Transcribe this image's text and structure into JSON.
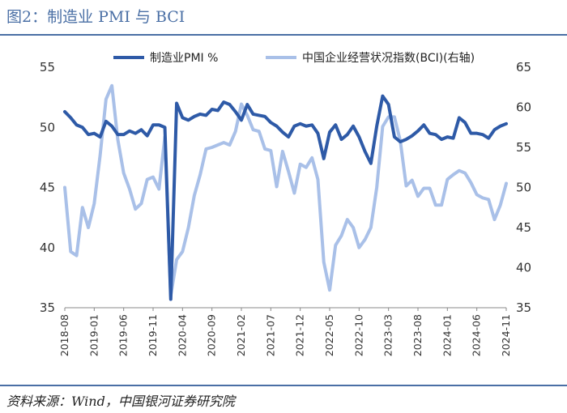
{
  "title": "图2：制造业 PMI 与 BCI",
  "source": "资料来源：Wind，中国银河证券研究院",
  "colors": {
    "pmi": "#2e5aa7",
    "bci": "#a9c0e8",
    "accent": "#4a6fa5"
  },
  "chart_data": {
    "type": "line",
    "x_tick_labels": [
      "2018-08",
      "2019-01",
      "2019-06",
      "2019-11",
      "2020-04",
      "2020-09",
      "2021-02",
      "2021-07",
      "2021-12",
      "2022-05",
      "2022-10",
      "2023-03",
      "2023-08",
      "2024-01",
      "2024-06",
      "2024-11"
    ],
    "x": [
      "2018-08",
      "2018-09",
      "2018-10",
      "2018-11",
      "2018-12",
      "2019-01",
      "2019-02",
      "2019-03",
      "2019-04",
      "2019-05",
      "2019-06",
      "2019-07",
      "2019-08",
      "2019-09",
      "2019-10",
      "2019-11",
      "2019-12",
      "2020-01",
      "2020-02",
      "2020-03",
      "2020-04",
      "2020-05",
      "2020-06",
      "2020-07",
      "2020-08",
      "2020-09",
      "2020-10",
      "2020-11",
      "2020-12",
      "2021-01",
      "2021-02",
      "2021-03",
      "2021-04",
      "2021-05",
      "2021-06",
      "2021-07",
      "2021-08",
      "2021-09",
      "2021-10",
      "2021-11",
      "2021-12",
      "2022-01",
      "2022-02",
      "2022-03",
      "2022-04",
      "2022-05",
      "2022-06",
      "2022-07",
      "2022-08",
      "2022-09",
      "2022-10",
      "2022-11",
      "2022-12",
      "2023-01",
      "2023-02",
      "2023-03",
      "2023-04",
      "2023-05",
      "2023-06",
      "2023-07",
      "2023-08",
      "2023-09",
      "2023-10",
      "2023-11",
      "2023-12",
      "2024-01",
      "2024-02",
      "2024-03",
      "2024-04",
      "2024-05",
      "2024-06",
      "2024-07",
      "2024-08",
      "2024-09",
      "2024-10",
      "2024-11"
    ],
    "y_left": {
      "label": "",
      "range": [
        35,
        55
      ],
      "ticks": [
        35,
        40,
        45,
        50,
        55
      ]
    },
    "y_right": {
      "label": "",
      "range": [
        35,
        65
      ],
      "ticks": [
        35,
        40,
        45,
        50,
        55,
        60,
        65
      ]
    },
    "legend_position": "top",
    "series": [
      {
        "name": "制造业PMI %",
        "axis": "left",
        "values": [
          51.3,
          50.8,
          50.2,
          50.0,
          49.4,
          49.5,
          49.2,
          50.5,
          50.1,
          49.4,
          49.4,
          49.7,
          49.5,
          49.8,
          49.3,
          50.2,
          50.2,
          50.0,
          35.7,
          52.0,
          50.8,
          50.6,
          50.9,
          51.1,
          51.0,
          51.5,
          51.4,
          52.1,
          51.9,
          51.3,
          50.6,
          51.9,
          51.1,
          51.0,
          50.9,
          50.4,
          50.1,
          49.6,
          49.2,
          50.1,
          50.3,
          50.1,
          50.2,
          49.5,
          47.4,
          49.6,
          50.2,
          49.0,
          49.4,
          50.1,
          49.2,
          48.0,
          47.0,
          50.1,
          52.6,
          51.9,
          49.2,
          48.8,
          49.0,
          49.3,
          49.7,
          50.2,
          49.5,
          49.4,
          49.0,
          49.2,
          49.1,
          50.8,
          50.4,
          49.5,
          49.5,
          49.4,
          49.1,
          49.8,
          50.1,
          50.3
        ]
      },
      {
        "name": "中国企业经营状况指数(BCI)(右轴)",
        "axis": "right",
        "values": [
          50.0,
          42.0,
          41.5,
          47.5,
          45.0,
          48.0,
          54.0,
          61.0,
          62.7,
          56.0,
          51.8,
          49.8,
          47.3,
          48.0,
          51.0,
          51.3,
          49.8,
          56.3,
          36.5,
          41.0,
          42.0,
          45.0,
          49.0,
          51.6,
          54.8,
          55.0,
          55.3,
          55.6,
          55.3,
          57.0,
          60.4,
          59.0,
          57.2,
          57.0,
          54.8,
          54.6,
          50.1,
          54.5,
          52.0,
          49.3,
          52.9,
          52.5,
          53.7,
          51.0,
          40.7,
          37.2,
          42.8,
          44.0,
          46.0,
          45.0,
          42.5,
          43.5,
          45.0,
          50.0,
          57.6,
          58.8,
          58.8,
          55.8,
          50.2,
          50.9,
          48.9,
          49.9,
          49.9,
          47.8,
          47.8,
          51.0,
          51.6,
          52.1,
          51.8,
          50.6,
          49.1,
          48.7,
          48.5,
          46.0,
          47.8,
          50.5
        ]
      }
    ]
  }
}
